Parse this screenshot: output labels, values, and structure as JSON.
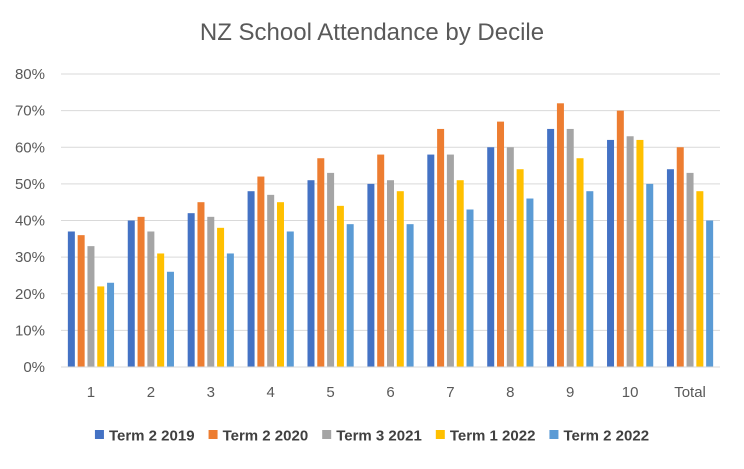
{
  "chart_data": {
    "type": "bar",
    "title": "NZ School Attendance by Decile",
    "xlabel": "",
    "ylabel": "",
    "categories": [
      "1",
      "2",
      "3",
      "4",
      "5",
      "6",
      "7",
      "8",
      "9",
      "10",
      "Total"
    ],
    "y_ticks": [
      "0%",
      "10%",
      "20%",
      "30%",
      "40%",
      "50%",
      "60%",
      "70%",
      "80%"
    ],
    "ylim": [
      0,
      80
    ],
    "y_unit": "%",
    "grid": true,
    "legend_position": "bottom",
    "series": [
      {
        "name": "Term 2 2019",
        "color": "#4472C4",
        "values": [
          37,
          40,
          42,
          48,
          51,
          50,
          58,
          60,
          65,
          62,
          54
        ]
      },
      {
        "name": "Term 2 2020",
        "color": "#ED7D31",
        "values": [
          36,
          41,
          45,
          52,
          57,
          58,
          65,
          67,
          72,
          70,
          60
        ]
      },
      {
        "name": "Term 3 2021",
        "color": "#A5A5A5",
        "values": [
          33,
          37,
          41,
          47,
          53,
          51,
          58,
          60,
          65,
          63,
          53
        ]
      },
      {
        "name": "Term 1 2022",
        "color": "#FFC000",
        "values": [
          22,
          31,
          38,
          45,
          44,
          48,
          51,
          54,
          57,
          62,
          48
        ]
      },
      {
        "name": "Term 2 2022",
        "color": "#5B9BD5",
        "values": [
          23,
          26,
          31,
          37,
          39,
          39,
          43,
          46,
          48,
          50,
          40
        ]
      }
    ]
  }
}
